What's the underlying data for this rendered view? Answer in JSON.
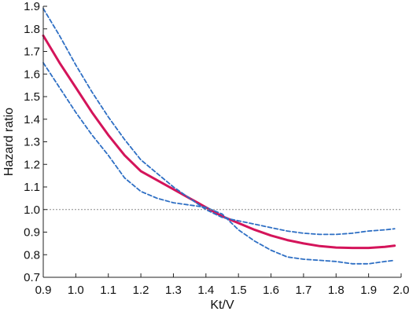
{
  "chart_data": {
    "type": "line",
    "title": "",
    "xlabel": "Kt/V",
    "ylabel": "Hazard ratio",
    "xlim": [
      0.9,
      2.0
    ],
    "ylim": [
      0.7,
      1.9
    ],
    "x_ticks": [
      "0.9",
      "1.0",
      "1.1",
      "1.2",
      "1.3",
      "1.4",
      "1.5",
      "1.6",
      "1.7",
      "1.8",
      "1.9",
      "2.0"
    ],
    "y_ticks": [
      "0.7",
      "0.8",
      "0.9",
      "1.0",
      "1.1",
      "1.2",
      "1.3",
      "1.4",
      "1.5",
      "1.6",
      "1.7",
      "1.8",
      "1.9"
    ],
    "reference_line": {
      "y": 1.0,
      "style": "dotted",
      "color": "#8a8a8a"
    },
    "grid": false,
    "series": [
      {
        "style": "solid",
        "color": "#d4145a",
        "x": [
          0.9,
          0.95,
          1.0,
          1.05,
          1.1,
          1.15,
          1.2,
          1.25,
          1.3,
          1.35,
          1.4,
          1.45,
          1.5,
          1.55,
          1.6,
          1.65,
          1.7,
          1.75,
          1.8,
          1.85,
          1.9,
          1.95,
          1.98
        ],
        "y": [
          1.77,
          1.65,
          1.54,
          1.43,
          1.33,
          1.24,
          1.17,
          1.13,
          1.09,
          1.05,
          1.01,
          0.97,
          0.94,
          0.91,
          0.885,
          0.865,
          0.85,
          0.838,
          0.832,
          0.83,
          0.83,
          0.835,
          0.84
        ]
      },
      {
        "style": "dashed",
        "color": "#2e6fc4",
        "x": [
          0.9,
          0.95,
          1.0,
          1.05,
          1.1,
          1.15,
          1.2,
          1.25,
          1.3,
          1.35,
          1.4,
          1.45,
          1.5,
          1.55,
          1.6,
          1.65,
          1.7,
          1.75,
          1.8,
          1.85,
          1.9,
          1.95,
          1.98
        ],
        "y": [
          1.89,
          1.77,
          1.64,
          1.52,
          1.41,
          1.31,
          1.22,
          1.16,
          1.1,
          1.05,
          1.0,
          0.965,
          0.95,
          0.935,
          0.92,
          0.905,
          0.895,
          0.89,
          0.89,
          0.895,
          0.905,
          0.91,
          0.915
        ]
      },
      {
        "style": "dashed",
        "color": "#2e6fc4",
        "x": [
          0.9,
          0.95,
          1.0,
          1.05,
          1.1,
          1.15,
          1.2,
          1.25,
          1.3,
          1.35,
          1.4,
          1.45,
          1.5,
          1.55,
          1.6,
          1.65,
          1.7,
          1.75,
          1.8,
          1.85,
          1.9,
          1.95,
          1.98
        ],
        "y": [
          1.65,
          1.54,
          1.43,
          1.33,
          1.24,
          1.14,
          1.08,
          1.05,
          1.03,
          1.02,
          1.01,
          0.98,
          0.91,
          0.86,
          0.82,
          0.79,
          0.78,
          0.775,
          0.77,
          0.76,
          0.76,
          0.77,
          0.775
        ]
      }
    ]
  }
}
